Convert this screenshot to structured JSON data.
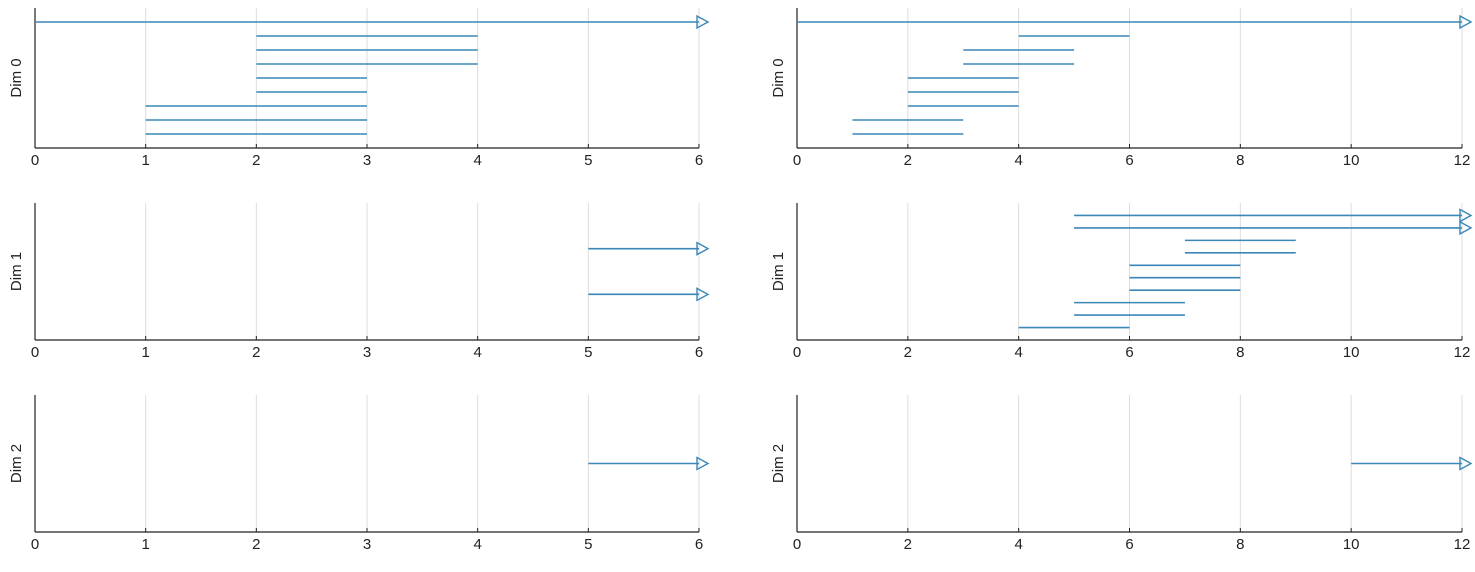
{
  "chart_data": [
    {
      "type": "barcode",
      "ylabel": "Dim 0",
      "color": "#3a87b8",
      "xlim": [
        0,
        6
      ],
      "xticks": [
        0,
        1,
        2,
        3,
        4,
        5,
        6
      ],
      "grid": true,
      "births": [
        0,
        2,
        2,
        2,
        2,
        2,
        1,
        1,
        1
      ],
      "deaths": [
        null,
        4,
        4,
        4,
        3,
        3,
        3,
        3,
        3
      ]
    },
    {
      "type": "barcode",
      "ylabel": "Dim 0",
      "color": "#3a87b8",
      "xlim": [
        0,
        12
      ],
      "xticks": [
        0,
        2,
        4,
        6,
        8,
        10,
        12
      ],
      "grid": true,
      "births": [
        0,
        4,
        3,
        3,
        2,
        2,
        2,
        1,
        1
      ],
      "deaths": [
        null,
        6,
        5,
        5,
        4,
        4,
        4,
        3,
        3
      ]
    },
    {
      "type": "barcode",
      "ylabel": "Dim 1",
      "color": "#3a87b8",
      "xlim": [
        0,
        6
      ],
      "xticks": [
        0,
        1,
        2,
        3,
        4,
        5,
        6
      ],
      "grid": true,
      "births": [
        5,
        5
      ],
      "deaths": [
        null,
        null
      ]
    },
    {
      "type": "barcode",
      "ylabel": "Dim 1",
      "color": "#3a87b8",
      "xlim": [
        0,
        12
      ],
      "xticks": [
        0,
        2,
        4,
        6,
        8,
        10,
        12
      ],
      "grid": true,
      "births": [
        5,
        5,
        7,
        7,
        6,
        6,
        6,
        5,
        5,
        4
      ],
      "deaths": [
        null,
        null,
        9,
        9,
        8,
        8,
        8,
        7,
        7,
        6
      ]
    },
    {
      "type": "barcode",
      "ylabel": "Dim 2",
      "color": "#3a87b8",
      "xlim": [
        0,
        6
      ],
      "xticks": [
        0,
        1,
        2,
        3,
        4,
        5,
        6
      ],
      "grid": true,
      "births": [
        5
      ],
      "deaths": [
        null
      ]
    },
    {
      "type": "barcode",
      "ylabel": "Dim 2",
      "color": "#3a87b8",
      "xlim": [
        0,
        12
      ],
      "xticks": [
        0,
        2,
        4,
        6,
        8,
        10,
        12
      ],
      "grid": true,
      "births": [
        10
      ],
      "deaths": [
        null
      ]
    }
  ]
}
